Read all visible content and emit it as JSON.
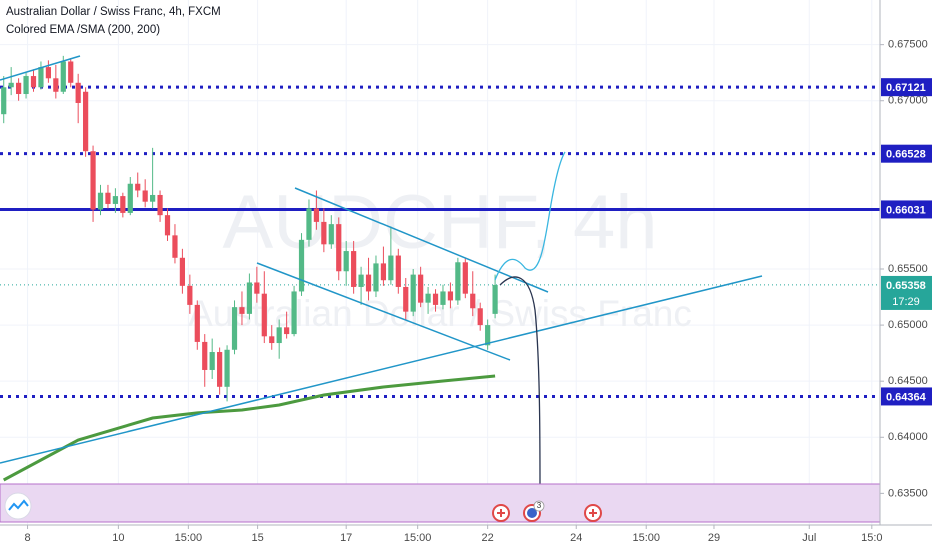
{
  "chart_data": {
    "type": "candlestick",
    "title": "Australian Dollar / Swiss Franc, 4h, FXCM",
    "subtitle": "Colored EMA /SMA (200, 200)",
    "watermark": {
      "symbol": "AUDCHF, 4h",
      "name": "Australian Dollar / Swiss Franc"
    },
    "up_color": "#53b987",
    "down_color": "#eb4d5c",
    "open": [
      0.6688,
      0.6712,
      0.6716,
      0.6706,
      0.6722,
      0.6712,
      0.673,
      0.672,
      0.6708,
      0.6735,
      0.6716,
      0.6708,
      0.6655,
      0.6603,
      0.6618,
      0.6608,
      0.6615,
      0.66,
      0.6626,
      0.662,
      0.661,
      0.6616,
      0.6598,
      0.658,
      0.656,
      0.6535,
      0.6518,
      0.6485,
      0.646,
      0.6476,
      0.6445,
      0.6478,
      0.6516,
      0.651,
      0.6538,
      0.6528,
      0.649,
      0.6484,
      0.6498,
      0.6492,
      0.653,
      0.6576,
      0.6604,
      0.6592,
      0.6572,
      0.659,
      0.6548,
      0.6566,
      0.6534,
      0.6545,
      0.653,
      0.6555,
      0.654,
      0.6562,
      0.6534,
      0.6512,
      0.6545,
      0.652,
      0.6528,
      0.6518,
      0.653,
      0.6522,
      0.6556,
      0.6528,
      0.6515,
      0.6482,
      0.651
    ],
    "high": [
      0.6722,
      0.673,
      0.672,
      0.6726,
      0.6728,
      0.6735,
      0.6736,
      0.6732,
      0.674,
      0.6738,
      0.6724,
      0.6712,
      0.666,
      0.6625,
      0.6625,
      0.6622,
      0.6618,
      0.6632,
      0.6636,
      0.663,
      0.6658,
      0.662,
      0.6604,
      0.659,
      0.6568,
      0.6545,
      0.6522,
      0.6492,
      0.6488,
      0.648,
      0.6482,
      0.6522,
      0.653,
      0.6546,
      0.6552,
      0.6548,
      0.65,
      0.6505,
      0.6512,
      0.6535,
      0.6582,
      0.6612,
      0.662,
      0.6604,
      0.6598,
      0.6596,
      0.6575,
      0.6575,
      0.6552,
      0.656,
      0.6562,
      0.657,
      0.6588,
      0.6568,
      0.6542,
      0.655,
      0.6552,
      0.6534,
      0.6532,
      0.6536,
      0.6538,
      0.656,
      0.656,
      0.6548,
      0.652,
      0.6505,
      0.6545
    ],
    "low": [
      0.668,
      0.6705,
      0.67,
      0.6702,
      0.6708,
      0.671,
      0.6716,
      0.6702,
      0.6706,
      0.6712,
      0.668,
      0.665,
      0.6592,
      0.6598,
      0.6604,
      0.66,
      0.6596,
      0.6598,
      0.6614,
      0.6605,
      0.6604,
      0.6592,
      0.6575,
      0.6555,
      0.6528,
      0.651,
      0.6478,
      0.6445,
      0.6452,
      0.6438,
      0.6432,
      0.6474,
      0.65,
      0.6505,
      0.652,
      0.6484,
      0.6478,
      0.647,
      0.6488,
      0.649,
      0.6526,
      0.657,
      0.6585,
      0.6565,
      0.6568,
      0.654,
      0.6535,
      0.6528,
      0.6518,
      0.6522,
      0.6525,
      0.6535,
      0.6536,
      0.6528,
      0.6505,
      0.6508,
      0.6516,
      0.651,
      0.6512,
      0.6514,
      0.6515,
      0.6518,
      0.6524,
      0.6508,
      0.6495,
      0.6478,
      0.6506
    ],
    "close": [
      0.6712,
      0.6716,
      0.6706,
      0.6722,
      0.6712,
      0.673,
      0.672,
      0.6708,
      0.6735,
      0.6716,
      0.6698,
      0.6655,
      0.6603,
      0.6618,
      0.6608,
      0.6615,
      0.66,
      0.6626,
      0.662,
      0.661,
      0.6616,
      0.6598,
      0.658,
      0.656,
      0.6535,
      0.6518,
      0.6485,
      0.646,
      0.6476,
      0.6445,
      0.6478,
      0.6516,
      0.651,
      0.6538,
      0.6528,
      0.649,
      0.6484,
      0.6498,
      0.6492,
      0.653,
      0.6576,
      0.6604,
      0.6592,
      0.6572,
      0.659,
      0.6548,
      0.6566,
      0.6534,
      0.6545,
      0.653,
      0.6555,
      0.654,
      0.6562,
      0.6534,
      0.6512,
      0.6545,
      0.652,
      0.6528,
      0.6518,
      0.653,
      0.6522,
      0.6556,
      0.6528,
      0.6515,
      0.65,
      0.65,
      0.65358
    ],
    "ema": {
      "color": "#4c9a3f",
      "x": [
        0,
        10,
        20,
        26,
        32,
        37,
        43,
        51,
        59,
        66
      ],
      "values": [
        0.63619,
        0.63976,
        0.64172,
        0.64217,
        0.64243,
        0.64288,
        0.64377,
        0.64448,
        0.64502,
        0.64546
      ]
    },
    "xlim": [
      -0.5,
      117.7
    ],
    "xticks": [
      {
        "value": 3.2,
        "label": "8"
      },
      {
        "value": 15.4,
        "label": "10"
      },
      {
        "value": 24.8,
        "label": "15:00"
      },
      {
        "value": 34.1,
        "label": "15"
      },
      {
        "value": 46,
        "label": "17"
      },
      {
        "value": 55.6,
        "label": "15:00"
      },
      {
        "value": 65,
        "label": "22"
      },
      {
        "value": 76.9,
        "label": "24"
      },
      {
        "value": 86.3,
        "label": "15:00"
      },
      {
        "value": 95.4,
        "label": "29"
      },
      {
        "value": 108.2,
        "label": "Jul"
      },
      {
        "value": 116.6,
        "label": "15:0"
      }
    ],
    "ylim": [
      0.63218,
      0.67898
    ],
    "yticks": [
      {
        "value": 0.635,
        "label": "0.63500"
      },
      {
        "value": 0.64,
        "label": "0.64000"
      },
      {
        "value": 0.645,
        "label": "0.64500"
      },
      {
        "value": 0.65,
        "label": "0.65000"
      },
      {
        "value": 0.655,
        "label": "0.65500"
      },
      {
        "value": 0.67,
        "label": "0.67000"
      },
      {
        "value": 0.675,
        "label": "0.67500"
      }
    ],
    "grid": true,
    "levels": [
      {
        "value": 0.67121,
        "style": "dotted",
        "color": "#1f1fc2"
      },
      {
        "value": 0.66528,
        "style": "dotted",
        "color": "#1f1fc2"
      },
      {
        "value": 0.66031,
        "style": "solid",
        "color": "#1f1fc2"
      },
      {
        "value": 0.64364,
        "style": "dotted",
        "color": "#1f1fc2"
      }
    ],
    "last_price": {
      "value": 0.65358,
      "color": "#26a69a"
    },
    "countdown": "17:29",
    "event_badge": 3
  }
}
